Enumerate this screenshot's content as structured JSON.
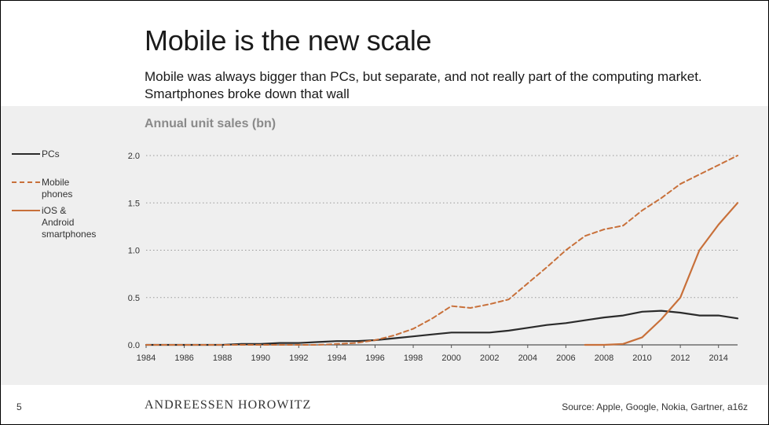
{
  "slide": {
    "title": "Mobile is the new scale",
    "subtitle": "Mobile was always bigger than PCs, but separate, and not really part of the computing market. Smartphones broke down that wall",
    "page_number": "5",
    "brand": "ANDREESSEN HOROWITZ",
    "source": "Source: Apple, Google, Nokia, Gartner, a16z"
  },
  "colors": {
    "panel_background": "#efefef",
    "pcs_line": "#2b2b2b",
    "mobile_line": "#c8703a",
    "smartphone_line": "#c8703a"
  },
  "chart_data": {
    "type": "line",
    "title": "Annual unit sales (bn)",
    "xlabel": "",
    "ylabel": "",
    "xlim": [
      1984,
      2015
    ],
    "ylim": [
      0,
      2.0
    ],
    "x_ticks": [
      "1984",
      "1986",
      "1988",
      "1990",
      "1992",
      "1994",
      "1996",
      "1998",
      "2000",
      "2002",
      "2004",
      "2006",
      "2008",
      "2010",
      "2012",
      "2014"
    ],
    "y_ticks": [
      "0.0",
      "0.5",
      "1.0",
      "1.5",
      "2.0"
    ],
    "grid": "horizontal dotted",
    "legend_position": "left",
    "series": [
      {
        "name": "PCs",
        "style": "solid",
        "color": "#2b2b2b",
        "x": [
          1984,
          1985,
          1986,
          1987,
          1988,
          1989,
          1990,
          1991,
          1992,
          1993,
          1994,
          1995,
          1996,
          1997,
          1998,
          1999,
          2000,
          2001,
          2002,
          2003,
          2004,
          2005,
          2006,
          2007,
          2008,
          2009,
          2010,
          2011,
          2012,
          2013,
          2014,
          2015
        ],
        "values": [
          0.0,
          0.0,
          0.0,
          0.0,
          0.0,
          0.01,
          0.01,
          0.02,
          0.02,
          0.03,
          0.04,
          0.04,
          0.05,
          0.07,
          0.09,
          0.11,
          0.13,
          0.13,
          0.13,
          0.15,
          0.18,
          0.21,
          0.23,
          0.26,
          0.29,
          0.31,
          0.35,
          0.36,
          0.34,
          0.31,
          0.31,
          0.28
        ]
      },
      {
        "name": "Mobile phones",
        "style": "dashed",
        "color": "#c8703a",
        "x": [
          1984,
          1985,
          1986,
          1987,
          1988,
          1989,
          1990,
          1991,
          1992,
          1993,
          1994,
          1995,
          1996,
          1997,
          1998,
          1999,
          2000,
          2001,
          2002,
          2003,
          2004,
          2005,
          2006,
          2007,
          2008,
          2009,
          2010,
          2011,
          2012,
          2013,
          2014,
          2015
        ],
        "values": [
          0.0,
          0.0,
          0.0,
          0.0,
          0.0,
          0.0,
          0.0,
          0.0,
          0.0,
          0.0,
          0.01,
          0.02,
          0.05,
          0.1,
          0.17,
          0.28,
          0.41,
          0.39,
          0.43,
          0.48,
          0.65,
          0.82,
          1.0,
          1.15,
          1.22,
          1.26,
          1.42,
          1.55,
          1.7,
          1.8,
          1.9,
          2.0
        ]
      },
      {
        "name": "iOS & Android smartphones",
        "style": "solid",
        "color": "#c8703a",
        "x": [
          2007,
          2008,
          2009,
          2010,
          2011,
          2012,
          2013,
          2014,
          2015
        ],
        "values": [
          0.0,
          0.0,
          0.01,
          0.08,
          0.27,
          0.5,
          1.0,
          1.27,
          1.5
        ]
      }
    ],
    "legend": [
      {
        "label": "PCs"
      },
      {
        "label": "Mobile phones"
      },
      {
        "label": "iOS & Android\nsmartphones"
      }
    ]
  }
}
